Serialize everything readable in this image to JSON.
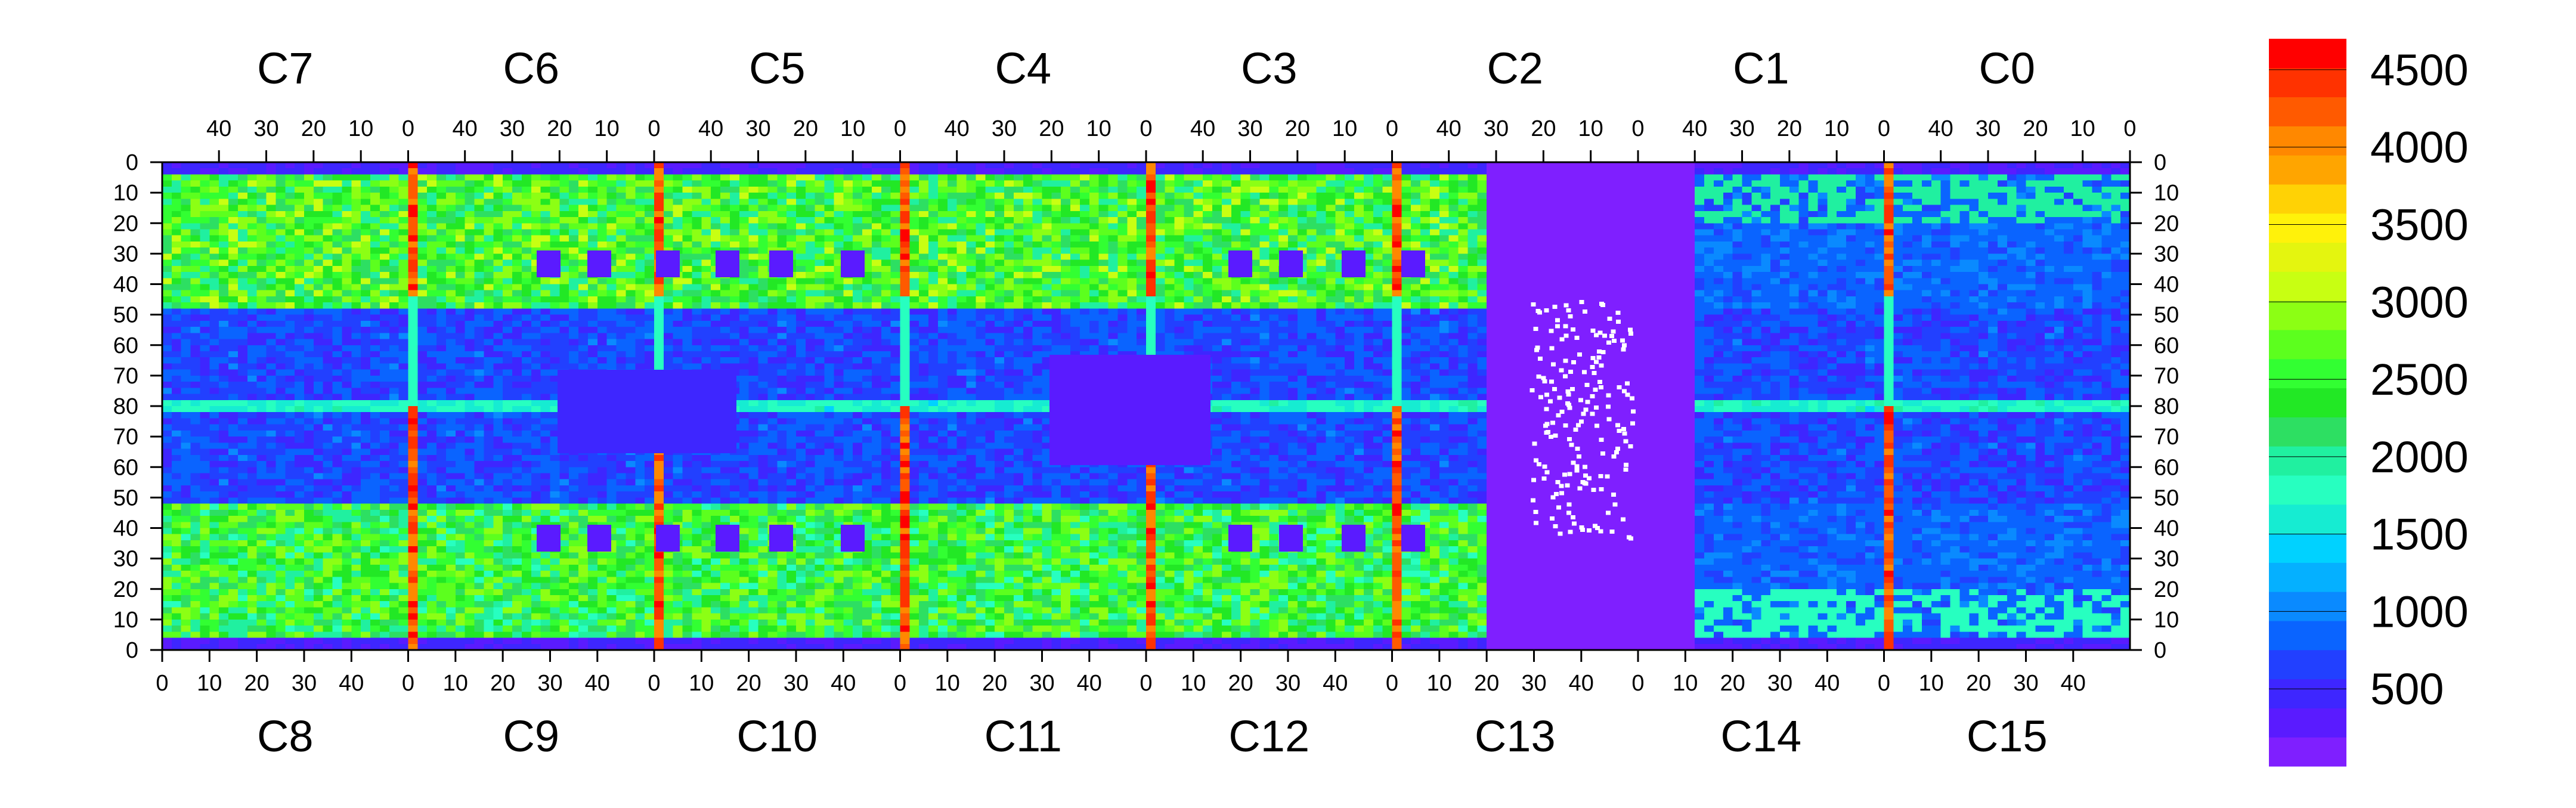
{
  "chart_data": {
    "type": "heatmap",
    "top_chips": [
      "C7",
      "C6",
      "C5",
      "C4",
      "C3",
      "C2",
      "C1",
      "C0"
    ],
    "bottom_chips": [
      "C8",
      "C9",
      "C10",
      "C11",
      "C12",
      "C13",
      "C14",
      "C15"
    ],
    "top_tick_labels": [
      "40",
      "30",
      "20",
      "10",
      "0"
    ],
    "bottom_tick_labels": [
      "0",
      "10",
      "20",
      "30",
      "40"
    ],
    "row_tick_labels": [
      "0",
      "10",
      "20",
      "30",
      "40",
      "50",
      "60",
      "70",
      "80",
      "70",
      "60",
      "50",
      "40",
      "30",
      "20",
      "10",
      "0"
    ],
    "colorbar_tick_labels": [
      "4500",
      "4000",
      "3500",
      "3000",
      "2500",
      "2000",
      "1500",
      "1000",
      "500"
    ],
    "zlim": [
      0,
      4700
    ],
    "colorbar_colors": [
      "#7f1fff",
      "#5a1bff",
      "#3e26ff",
      "#2240ff",
      "#0a64ff",
      "#0a8aff",
      "#05b0ff",
      "#00d2ff",
      "#16ecd2",
      "#27ffc0",
      "#20f0a0",
      "#2ddf62",
      "#22e825",
      "#32ff32",
      "#5cff1e",
      "#8cff14",
      "#c8ff12",
      "#e4f50f",
      "#fff20a",
      "#ffd205",
      "#ffa500",
      "#ff8800",
      "#ff5a00",
      "#ff3200",
      "#ff0000"
    ],
    "x_range": [
      0,
      52
    ],
    "y_range": [
      0,
      80
    ],
    "chip_columns": 52,
    "rows_per_half": 80,
    "regions": [
      {
        "name": "edge-noisy-cols",
        "value": 4300
      },
      {
        "name": "upper-band",
        "value": 2500
      },
      {
        "name": "lower-band",
        "value": 2400
      },
      {
        "name": "mid-band",
        "value": 700
      },
      {
        "name": "dead-pixel-blocks",
        "value": 350
      },
      {
        "name": "edge-fringe",
        "value": 250
      },
      {
        "name": "central-row",
        "value": 1700
      },
      {
        "name": "empty-region-c2-c14",
        "value": 150
      }
    ],
    "zero_count_pixels_shown": true
  }
}
